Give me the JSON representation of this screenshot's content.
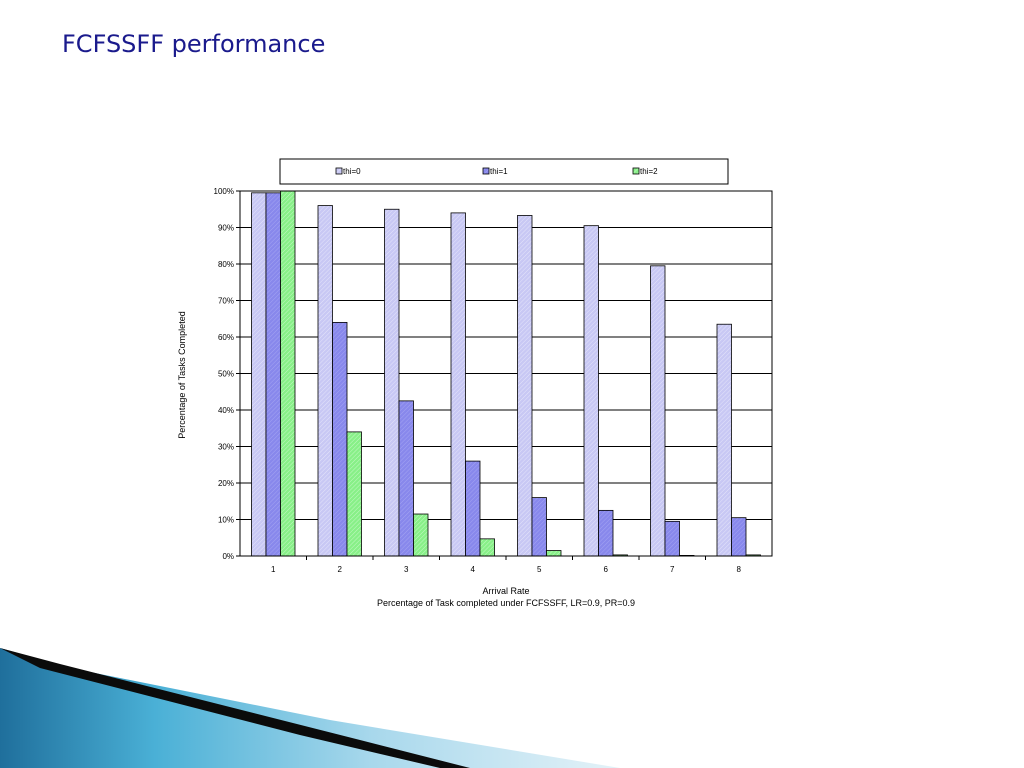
{
  "slide": {
    "title": "FCFSSFF performance"
  },
  "colors": {
    "title": "#1a1a8c",
    "series": [
      "#c8c8f4",
      "#8888ec",
      "#88f088"
    ]
  },
  "chart_data": {
    "type": "bar",
    "categories": [
      "1",
      "2",
      "3",
      "4",
      "5",
      "6",
      "7",
      "8"
    ],
    "series": [
      {
        "name": "thi=0",
        "values": [
          99.5,
          96,
          95,
          94,
          93.3,
          90.5,
          79.5,
          63.5
        ]
      },
      {
        "name": "thi=1",
        "values": [
          99.5,
          64,
          42.5,
          26,
          16,
          12.5,
          9.5,
          10.5
        ]
      },
      {
        "name": "thi=2",
        "values": [
          100,
          34,
          11.5,
          4.7,
          1.5,
          0.3,
          0,
          0.3
        ]
      }
    ],
    "xlabel": "Arrival Rate",
    "caption": "Percentage of Task completed under FCFSSFF, LR=0.9, PR=0.9",
    "ylabel": "Percentage of Tasks Completed",
    "ylim": [
      0,
      100
    ],
    "yticks": [
      "0%",
      "10%",
      "20%",
      "30%",
      "40%",
      "50%",
      "60%",
      "70%",
      "80%",
      "90%",
      "100%"
    ],
    "grid": true,
    "legend_position": "top"
  }
}
